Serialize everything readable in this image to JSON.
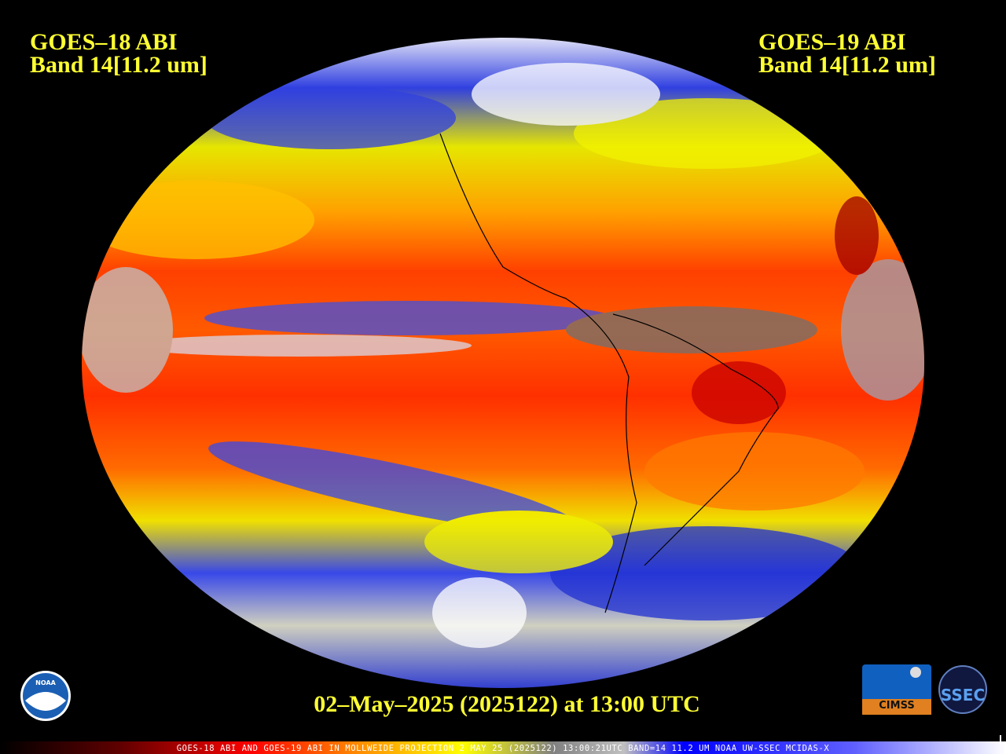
{
  "header": {
    "left": [
      "GOES–18 ABI",
      "Band 14[11.2 um]"
    ],
    "right": [
      "GOES–19 ABI",
      "Band 14[11.2 um]"
    ]
  },
  "footer": {
    "timestamp": "02–May–2025 (2025122) at 13:00 UTC",
    "colorbar_caption": "GOES-18 ABI AND GOES-19 ABI IN MOLLWEIDE PROJECTION 2 MAY 25 (2025122) 13:00:21UTC BAND=14 11.2 UM NOAA UW-SSEC MCIDAS-X"
  },
  "logos": {
    "noaa": "NOAA",
    "cimss": "CIMSS",
    "ssec": "SSEC"
  }
}
